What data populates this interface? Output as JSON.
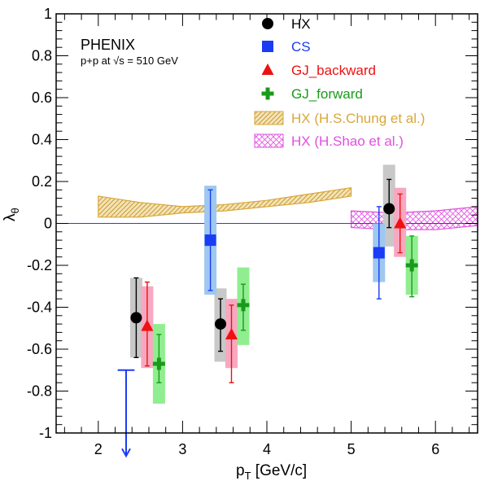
{
  "chart_data": {
    "type": "scatter",
    "experiment": "PHENIX",
    "collision": "p+p at √s = 510 GeV",
    "xlabel": "p",
    "xlabel_sub": "T",
    "xlabel_unit": " [GeV/c]",
    "ylabel": "λ",
    "ylabel_sub": "θ",
    "xlim": [
      1.5,
      6.5
    ],
    "ylim": [
      -1,
      1
    ],
    "x_ticks": [
      2,
      3,
      4,
      5,
      6
    ],
    "y_ticks": [
      -1,
      -0.8,
      -0.6,
      -0.4,
      -0.2,
      0,
      0.2,
      0.4,
      0.6,
      0.8,
      1
    ],
    "x_tick_labels": [
      "2",
      "3",
      "4",
      "5",
      "6"
    ],
    "y_tick_labels": [
      "-1",
      "-0.8",
      "-0.6",
      "-0.4",
      "-0.2",
      "0",
      "0.2",
      "0.4",
      "0.6",
      "0.8",
      "1"
    ],
    "grid": false,
    "legend_position": "top-right",
    "reference_line": {
      "y": 0,
      "color": "#2b3de0"
    },
    "series": [
      {
        "name": "HX",
        "marker": "circle",
        "color": "#000000",
        "sys_color": "#c8c8c8",
        "points": [
          {
            "x": 2.45,
            "y": -0.45,
            "stat": [
              -0.64,
              -0.26
            ],
            "sys": [
              -0.64,
              -0.26
            ]
          },
          {
            "x": 3.45,
            "y": -0.48,
            "stat": [
              -0.61,
              -0.36
            ],
            "sys": [
              -0.66,
              -0.31
            ]
          },
          {
            "x": 5.45,
            "y": 0.07,
            "stat": [
              -0.02,
              0.21
            ],
            "sys": [
              -0.11,
              0.28
            ]
          }
        ]
      },
      {
        "name": "CS",
        "marker": "square",
        "color": "#1a3cf5",
        "sys_color": "#9ec8f0",
        "points": [
          {
            "x": 3.33,
            "y": -0.08,
            "stat": [
              -0.32,
              0.16
            ],
            "sys": [
              -0.34,
              0.18
            ]
          },
          {
            "x": 5.33,
            "y": -0.14,
            "stat": [
              -0.36,
              0.08
            ],
            "sys": [
              -0.28,
              0.0
            ]
          }
        ]
      },
      {
        "name": "GJ_backward",
        "marker": "triangle",
        "color": "#ee1111",
        "sys_color": "#f7a8c0",
        "points": [
          {
            "x": 2.58,
            "y": -0.49,
            "stat": [
              -0.68,
              -0.28
            ],
            "sys": [
              -0.69,
              -0.3
            ]
          },
          {
            "x": 3.58,
            "y": -0.53,
            "stat": [
              -0.76,
              -0.39
            ],
            "sys": [
              -0.69,
              -0.36
            ]
          },
          {
            "x": 5.58,
            "y": 0.0,
            "stat": [
              -0.14,
              0.14
            ],
            "sys": [
              -0.16,
              0.17
            ]
          }
        ]
      },
      {
        "name": "GJ_forward",
        "marker": "cross",
        "color": "#1a9a1a",
        "sys_color": "#90ee90",
        "points": [
          {
            "x": 2.72,
            "y": -0.67,
            "stat": [
              -0.76,
              -0.53
            ],
            "sys": [
              -0.86,
              -0.48
            ]
          },
          {
            "x": 3.72,
            "y": -0.39,
            "stat": [
              -0.51,
              -0.29
            ],
            "sys": [
              -0.58,
              -0.21
            ]
          },
          {
            "x": 5.72,
            "y": -0.2,
            "stat": [
              -0.35,
              -0.06
            ],
            "sys": [
              -0.34,
              -0.06
            ]
          }
        ]
      }
    ],
    "upper_limit": {
      "x": 2.33,
      "y": -0.7,
      "color": "#1a3cf5",
      "x_span": [
        2.23,
        2.43
      ],
      "arrow_to": -1.11
    },
    "bands": [
      {
        "name": "HX (H.S.Chung et al.)",
        "color": "#d8a83a",
        "pattern": "hatch",
        "x": [
          2.0,
          2.5,
          3.0,
          3.5,
          4.0,
          4.5,
          5.0
        ],
        "lower": [
          0.03,
          0.03,
          0.05,
          0.06,
          0.08,
          0.1,
          0.13
        ],
        "upper": [
          0.13,
          0.1,
          0.08,
          0.09,
          0.11,
          0.14,
          0.17
        ]
      },
      {
        "name": "HX (H.Shao et al.)",
        "color": "#e050e0",
        "pattern": "crosshatch",
        "x": [
          5.0,
          5.5,
          6.0,
          6.5
        ],
        "lower": [
          -0.02,
          -0.03,
          -0.03,
          -0.01
        ],
        "upper": [
          0.06,
          0.05,
          0.06,
          0.08
        ]
      }
    ],
    "legend": [
      {
        "label": "HX",
        "symbol": "circle",
        "color": "#000000"
      },
      {
        "label": "CS",
        "symbol": "square",
        "color": "#1a3cf5"
      },
      {
        "label": "GJ_backward",
        "symbol": "triangle",
        "color": "#ee1111"
      },
      {
        "label": "GJ_forward",
        "symbol": "cross",
        "color": "#1a9a1a"
      },
      {
        "label": "HX (H.S.Chung et al.)",
        "symbol": "hatch",
        "color": "#d8a83a"
      },
      {
        "label": "HX (H.Shao et al.)",
        "symbol": "crosshatch",
        "color": "#e050e0"
      }
    ]
  }
}
